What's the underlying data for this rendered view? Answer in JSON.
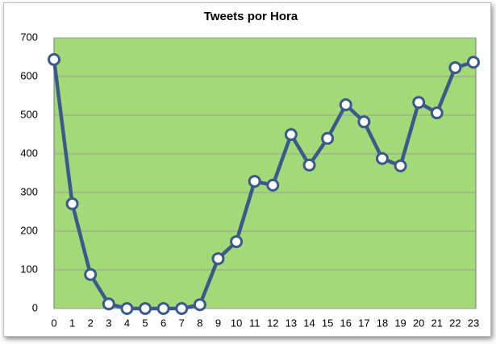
{
  "chart_data": {
    "type": "line",
    "title": "Tweets por Hora",
    "x": [
      0,
      1,
      2,
      3,
      4,
      5,
      6,
      7,
      8,
      9,
      10,
      11,
      12,
      13,
      14,
      15,
      16,
      17,
      18,
      19,
      20,
      21,
      22,
      23
    ],
    "series": [
      {
        "color": "#3a5a8c",
        "values": [
          644,
          271,
          88,
          12,
          0,
          0,
          0,
          0,
          10,
          129,
          173,
          329,
          319,
          450,
          371,
          440,
          527,
          483,
          388,
          369,
          533,
          506,
          623,
          637
        ]
      }
    ],
    "xlim": [
      0,
      23
    ],
    "xticks": [
      0,
      1,
      2,
      3,
      4,
      5,
      6,
      7,
      8,
      9,
      10,
      11,
      12,
      13,
      14,
      15,
      16,
      17,
      18,
      19,
      20,
      21,
      22,
      23
    ],
    "ylim": [
      0,
      700
    ],
    "yticks": [
      0,
      100,
      200,
      300,
      400,
      500,
      600,
      700
    ],
    "grid": true,
    "plot_background": "#a3d977"
  }
}
